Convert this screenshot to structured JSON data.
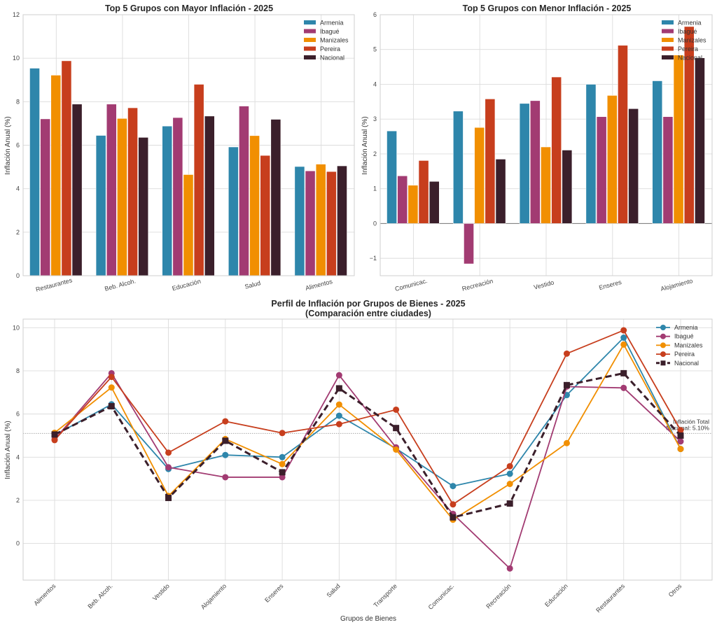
{
  "colors": {
    "Armenia": "#2e86ab",
    "Ibagué": "#a23b72",
    "Manizales": "#f18f01",
    "Pereira": "#c73e1d",
    "Nacional": "#3b1f2b"
  },
  "chart_data": [
    {
      "type": "bar",
      "title": "Top 5 Grupos con Mayor Inflación - 2025",
      "xlabel": "",
      "ylabel": "Inflación Anual (%)",
      "ylim": [
        0,
        12
      ],
      "yticks": [
        0,
        2,
        4,
        6,
        8,
        10,
        12
      ],
      "grid": true,
      "legend": "top-right",
      "categories": [
        "Restaurantes",
        "Beb. Alcoh.",
        "Educación",
        "Salud",
        "Alimentos"
      ],
      "series": [
        {
          "name": "Armenia",
          "values": [
            9.54,
            6.45,
            6.88,
            5.92,
            5.02
          ]
        },
        {
          "name": "Ibagué",
          "values": [
            7.21,
            7.89,
            7.27,
            7.8,
            4.82
          ]
        },
        {
          "name": "Manizales",
          "values": [
            9.22,
            7.23,
            4.65,
            6.44,
            5.13
          ]
        },
        {
          "name": "Pereira",
          "values": [
            9.88,
            7.72,
            8.8,
            5.53,
            4.79
          ]
        },
        {
          "name": "Nacional",
          "values": [
            7.89,
            6.36,
            7.34,
            7.19,
            5.05
          ]
        }
      ]
    },
    {
      "type": "bar",
      "title": "Top 5 Grupos con Menor Inflación - 2025",
      "xlabel": "",
      "ylabel": "Inflación Anual (%)",
      "ylim": [
        -1.5,
        6
      ],
      "yticks": [
        -1,
        0,
        1,
        2,
        3,
        4,
        5,
        6
      ],
      "grid": true,
      "legend": "top-right",
      "categories": [
        "Comunicac.",
        "Recreación",
        "Vestido",
        "Enseres",
        "Alojamiento"
      ],
      "series": [
        {
          "name": "Armenia",
          "values": [
            2.66,
            3.23,
            3.45,
            4.0,
            4.1
          ]
        },
        {
          "name": "Ibagué",
          "values": [
            1.37,
            -1.16,
            3.53,
            3.07,
            3.07
          ]
        },
        {
          "name": "Manizales",
          "values": [
            1.1,
            2.76,
            2.2,
            3.68,
            4.84
          ]
        },
        {
          "name": "Pereira",
          "values": [
            1.81,
            3.58,
            4.21,
            5.12,
            5.66
          ]
        },
        {
          "name": "Nacional",
          "values": [
            1.21,
            1.85,
            2.11,
            3.3,
            4.76
          ]
        }
      ]
    },
    {
      "type": "line",
      "title": "Perfil de Inflación por Grupos de Bienes - 2025",
      "subtitle": "(Comparación entre ciudades)",
      "xlabel": "Grupos de Bienes",
      "ylabel": "Inflación Anual (%)",
      "ylim": [
        -1.7,
        10.4
      ],
      "yticks": [
        0,
        2,
        4,
        6,
        8,
        10
      ],
      "grid": true,
      "legend": "top-right",
      "categories": [
        "Alimentos",
        "Beb. Alcoh.",
        "Vestido",
        "Alojamiento",
        "Enseres",
        "Salud",
        "Transporte",
        "Comunicac.",
        "Recreación",
        "Educación",
        "Restaurantes",
        "Otros"
      ],
      "series": [
        {
          "name": "Armenia",
          "style": "solid",
          "marker": "circle",
          "values": [
            5.02,
            6.45,
            3.45,
            4.1,
            4.0,
            5.92,
            4.4,
            2.66,
            3.23,
            6.88,
            9.54,
            4.38
          ]
        },
        {
          "name": "Ibagué",
          "style": "solid",
          "marker": "circle",
          "values": [
            4.82,
            7.89,
            3.53,
            3.07,
            3.07,
            7.8,
            4.45,
            1.37,
            -1.16,
            7.27,
            7.21,
            4.73
          ]
        },
        {
          "name": "Manizales",
          "style": "solid",
          "marker": "circle",
          "values": [
            5.13,
            7.23,
            2.2,
            4.84,
            3.68,
            6.44,
            4.35,
            1.1,
            2.76,
            4.65,
            9.22,
            4.38
          ]
        },
        {
          "name": "Pereira",
          "style": "solid",
          "marker": "circle",
          "values": [
            4.79,
            7.72,
            4.21,
            5.66,
            5.12,
            5.53,
            6.2,
            1.81,
            3.58,
            8.8,
            9.88,
            5.25
          ]
        },
        {
          "name": "Nacional",
          "style": "dashed",
          "marker": "square",
          "values": [
            5.05,
            6.36,
            2.11,
            4.76,
            3.3,
            7.19,
            5.35,
            1.21,
            1.85,
            7.34,
            7.89,
            5.0
          ]
        }
      ],
      "reference_line": {
        "value": 5.1,
        "label_line1": "Inflación Total",
        "label_line2": "Nacional: 5.10%"
      }
    }
  ]
}
